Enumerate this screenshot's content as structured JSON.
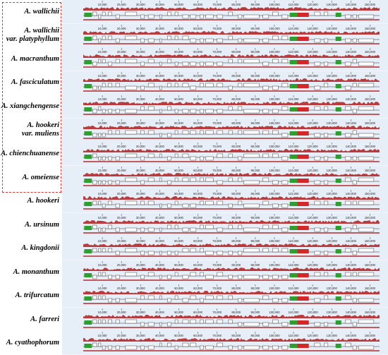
{
  "species": [
    "A. wallichii",
    "A. wallichii var. platyphyllum",
    "A. macranthum",
    "A. fasciculatum",
    "A. xiangchengense",
    "A. hookeri var. muliens",
    "A. chienchuanense",
    "A. omeiense",
    "A. hookeri",
    "A. ursinum",
    "A. kingdonii",
    "A. monanthum",
    "A. trifurcatum",
    "A. farreri",
    "A. cyathophorum"
  ],
  "highlight_group_count": 9,
  "axis": {
    "ticks": [
      "10,000",
      "20,000",
      "30,000",
      "40,000",
      "50,000",
      "60,000",
      "70,000",
      "80,000",
      "90,000",
      "100,000",
      "110,000",
      "120,000",
      "130,000",
      "140,000",
      "150,000"
    ],
    "max": 155000
  },
  "colors": {
    "highlight_box": "#e0312b",
    "coverage": "#b31b1b",
    "gene_green": "#2ca02c",
    "gene_red": "#d62728",
    "track_bg": "#e6eef8"
  }
}
